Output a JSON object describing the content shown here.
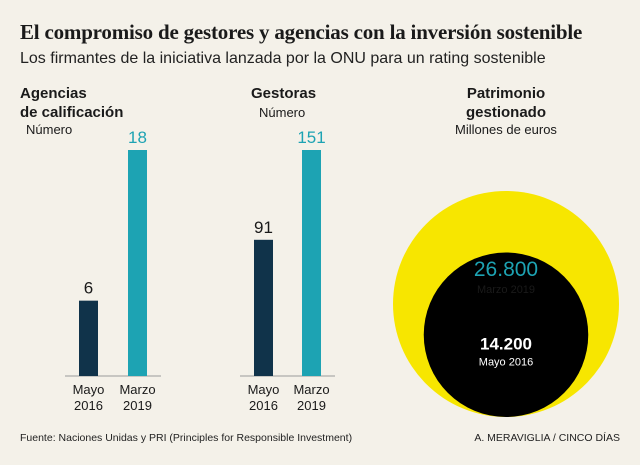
{
  "title": "El compromiso de gestores y agencias con la inversión sostenible",
  "subtitle": "Los firmantes de la iniciativa lanzada por la ONU para un rating sostenible",
  "colors": {
    "dark_bar": "#10334a",
    "teal_bar": "#1da3b3",
    "yellow": "#f7e600",
    "black": "#000000",
    "background": "#f4f1e9"
  },
  "chart_data": [
    {
      "type": "bar",
      "title_lines": [
        "Agencias",
        "de calificación"
      ],
      "unit": "Número",
      "categories": [
        [
          "Mayo",
          "2016"
        ],
        [
          "Marzo",
          "2019"
        ]
      ],
      "values": [
        6,
        18
      ],
      "value_labels": [
        "6",
        "18"
      ],
      "ylim": [
        0,
        18
      ]
    },
    {
      "type": "bar",
      "title_lines": [
        "Gestoras"
      ],
      "unit": "Número",
      "categories": [
        [
          "Mayo",
          "2016"
        ],
        [
          "Marzo",
          "2019"
        ]
      ],
      "values": [
        91,
        151
      ],
      "value_labels": [
        "91",
        "151"
      ],
      "ylim": [
        0,
        151
      ]
    },
    {
      "type": "bubble",
      "title_lines": [
        "Patrimonio",
        "gestionado"
      ],
      "unit": "Millones de euros",
      "items": [
        {
          "label": "Marzo 2019",
          "value": 26800,
          "value_label": "26.800"
        },
        {
          "label": "Mayo 2016",
          "value": 14200,
          "value_label": "14.200"
        }
      ]
    }
  ],
  "footer": {
    "source": "Fuente: Naciones Unidas y PRI (Principles for Responsible Investment)",
    "credit": "A. MERAVIGLIA / CINCO DÍAS"
  }
}
